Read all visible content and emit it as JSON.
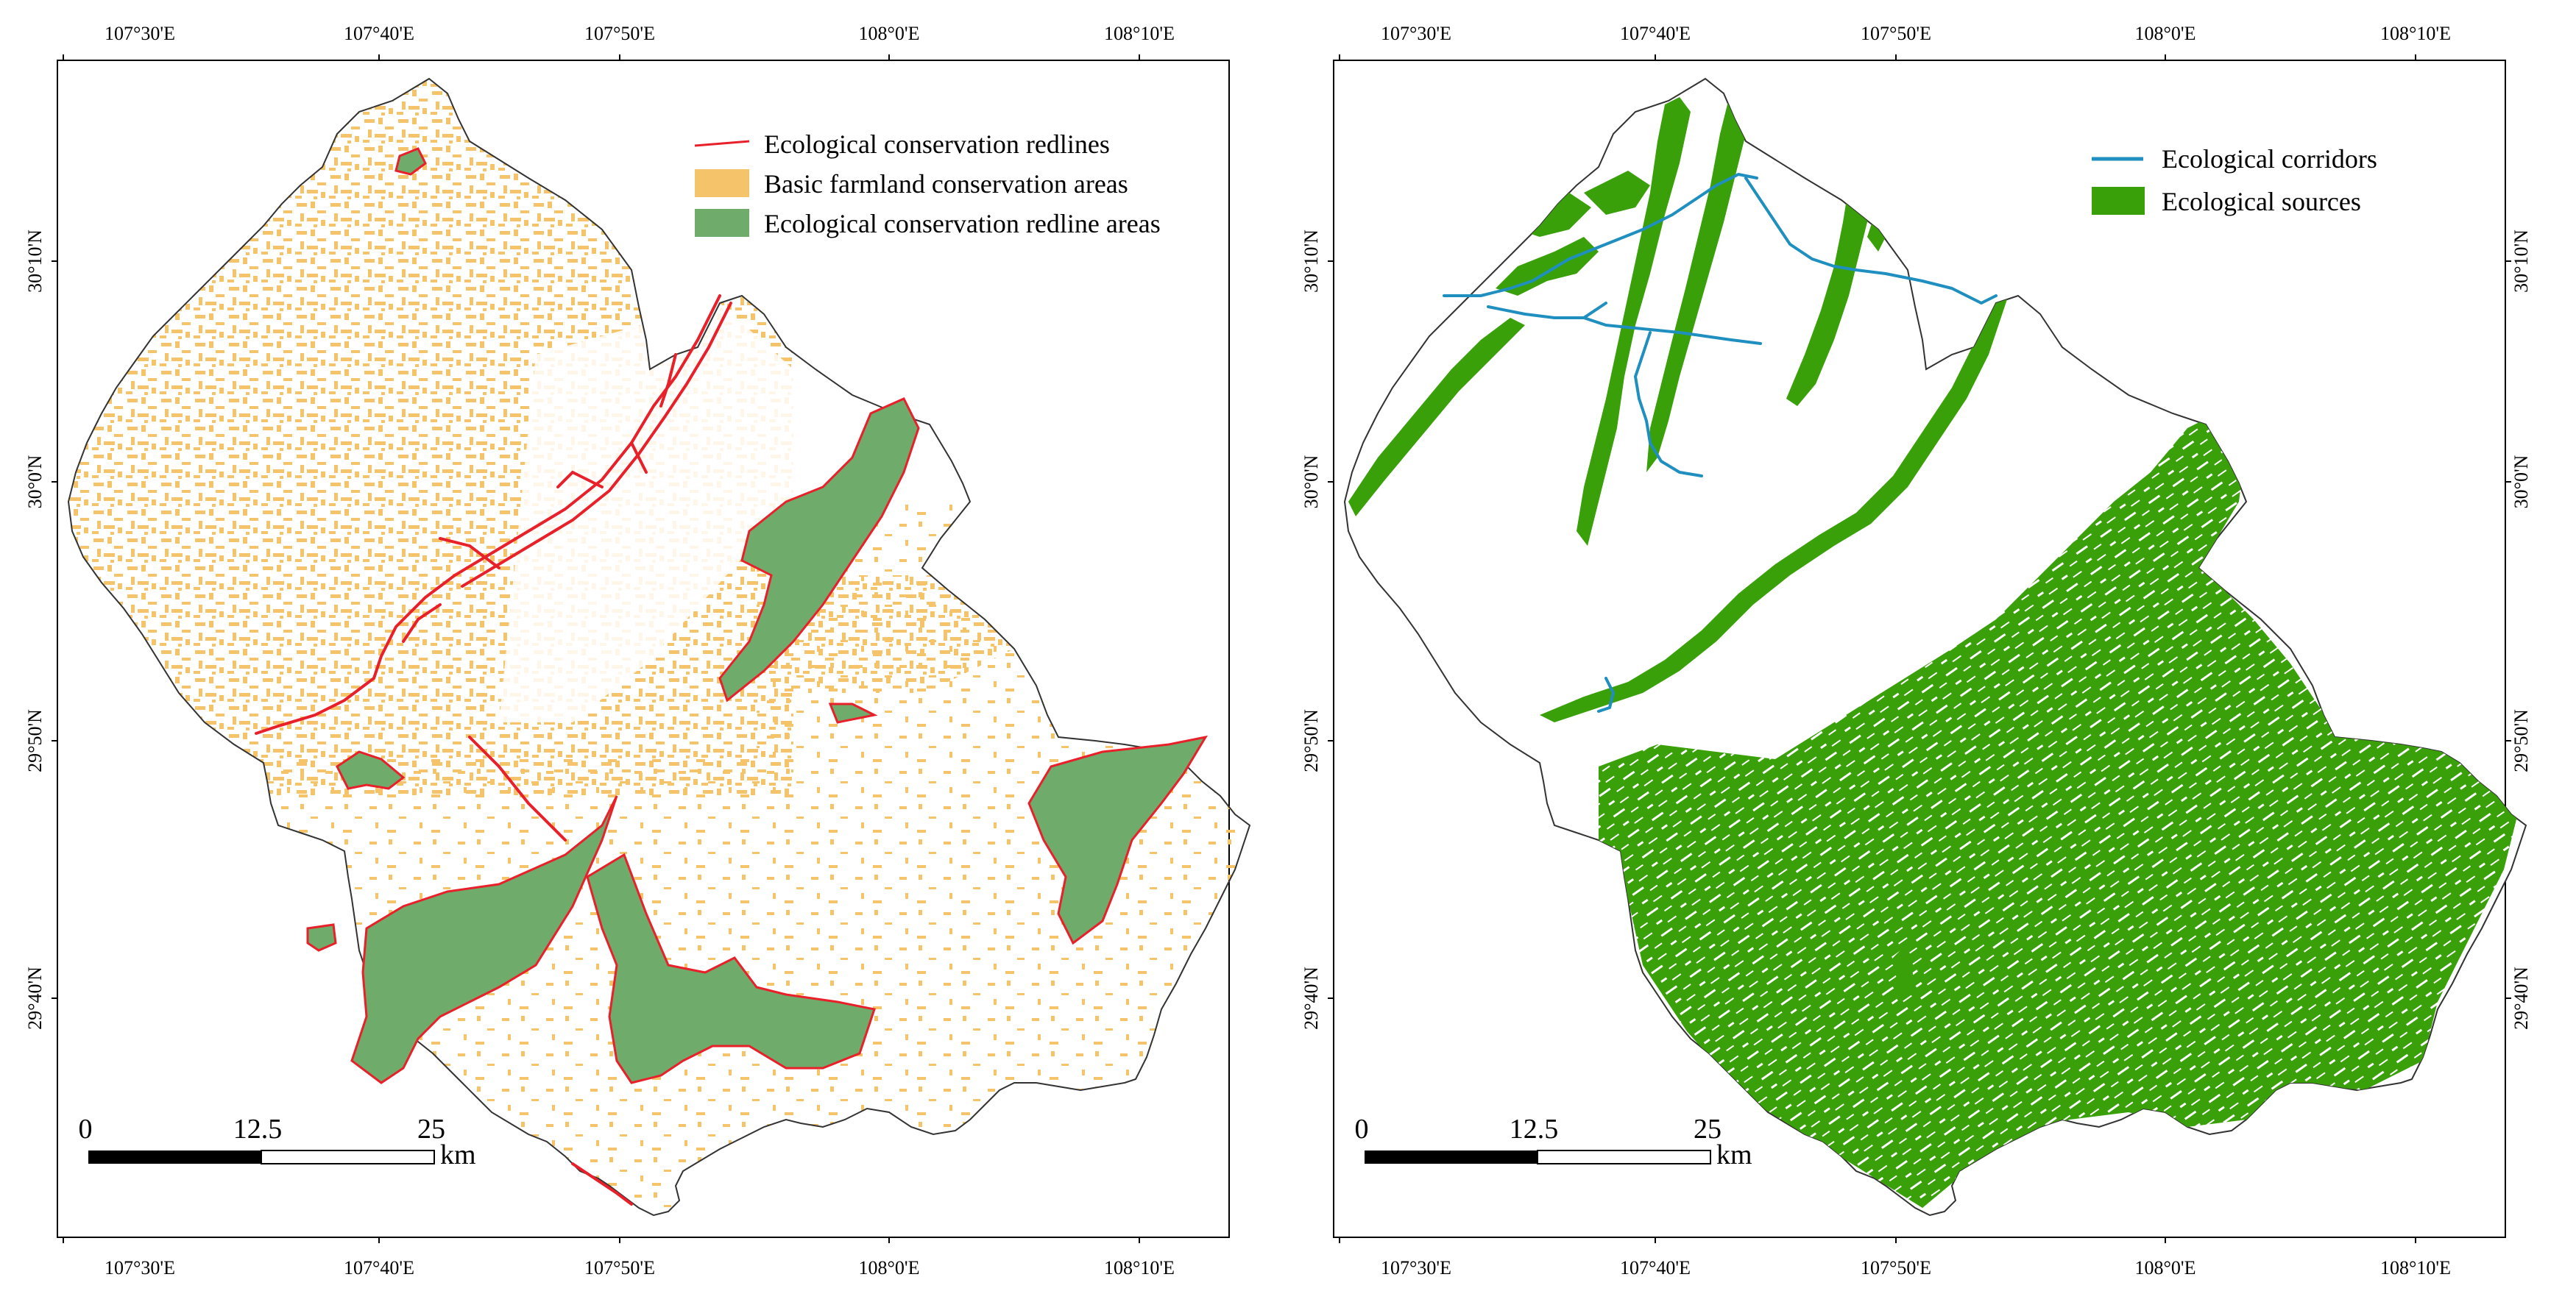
{
  "colors": {
    "redline": "#e8202a",
    "farmland": "#f5c46a",
    "redline_area": "#6fab6a",
    "corridor": "#1f8fbf",
    "source": "#3aa00a",
    "boundary": "#333333"
  },
  "ticks": {
    "lon": [
      "107°30'E",
      "107°40'E",
      "107°50'E",
      "108°0'E",
      "108°10'E"
    ],
    "lat": [
      "30°10'N",
      "30°0'N",
      "29°50'N",
      "29°40'N"
    ]
  },
  "scalebar": {
    "labels": [
      "0",
      "12.5",
      "25"
    ],
    "unit": "km"
  },
  "panels": [
    {
      "legend": [
        {
          "label": "Ecological conservation redlines",
          "symbol": "line",
          "color_key": "redline",
          "icon": "red-line-icon"
        },
        {
          "label": "Basic farmland  conservation areas",
          "symbol": "patch",
          "color_key": "farmland",
          "icon": "farmland-patch-icon"
        },
        {
          "label": "Ecological conservation redline areas",
          "symbol": "patch",
          "color_key": "redline_area",
          "icon": "redline-area-patch-icon"
        }
      ]
    },
    {
      "legend": [
        {
          "label": "Ecological corridors",
          "symbol": "line",
          "color_key": "corridor",
          "icon": "corridor-line-icon"
        },
        {
          "label": "Ecological sources",
          "symbol": "patch",
          "color_key": "source",
          "icon": "source-patch-icon"
        }
      ]
    }
  ]
}
